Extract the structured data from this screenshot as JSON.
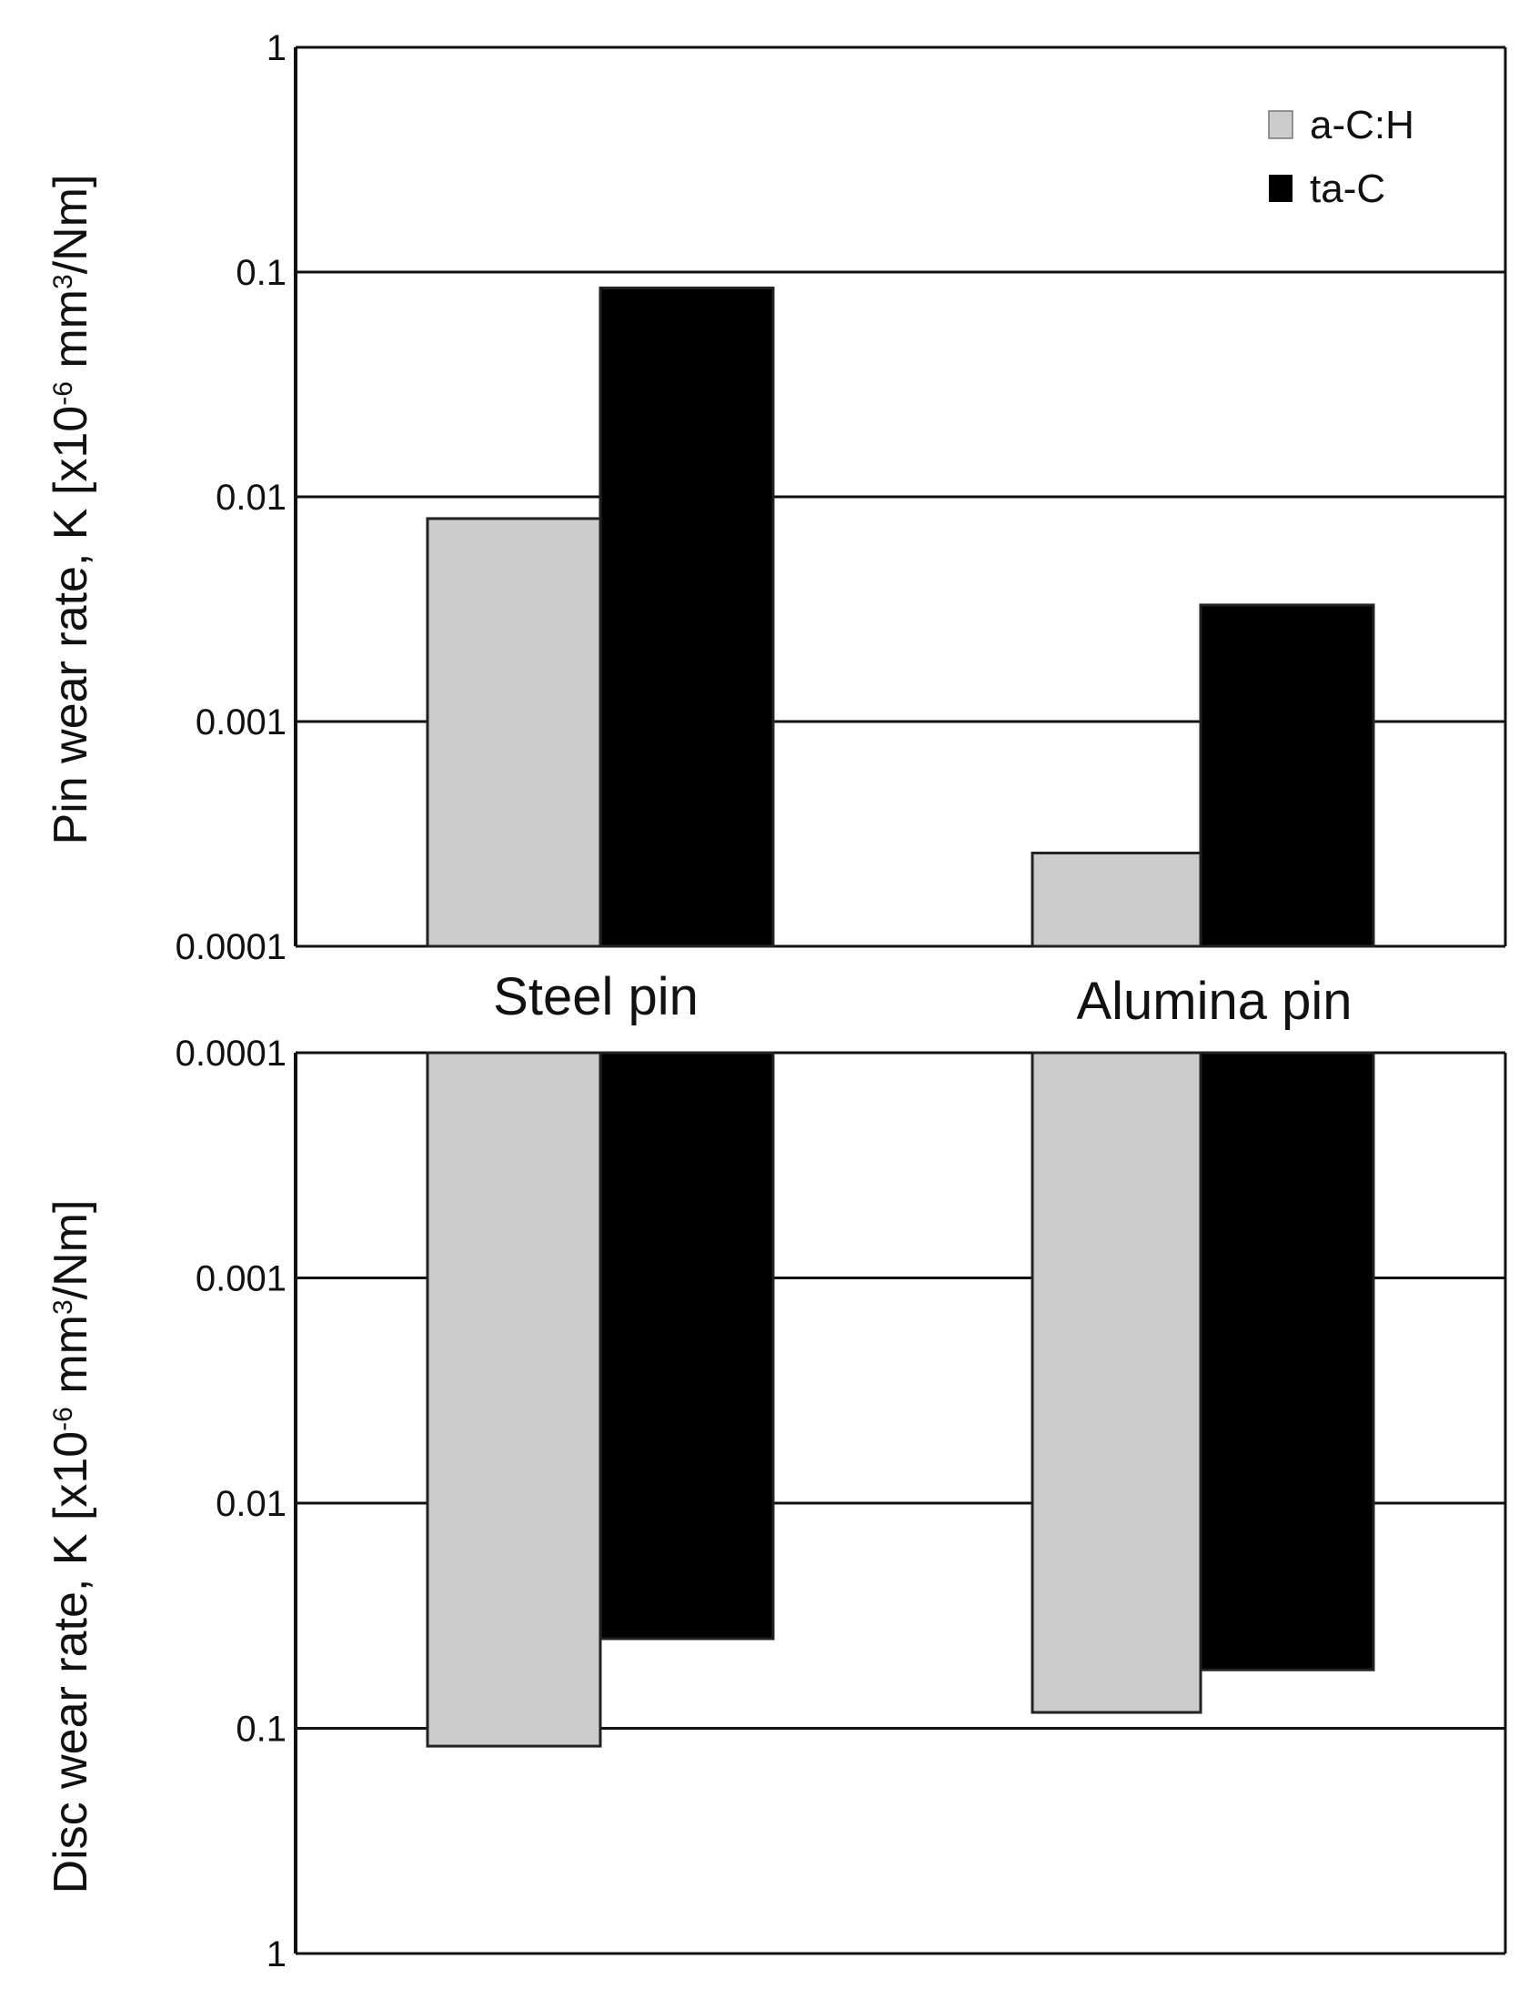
{
  "chart_data": [
    {
      "type": "bar",
      "yscale": "log",
      "ylim": [
        0.0001,
        1
      ],
      "yticks": [
        "1",
        "0.1",
        "0.01",
        "0.001",
        "0.0001"
      ],
      "ylabel": "Pin wear rate, K [x10",
      "ylabel_exp": "-6",
      "ylabel_mid": " mm",
      "ylabel_sup": "3",
      "ylabel_end": "/Nm]",
      "categories": [
        "Steel pin",
        "Alumina pin"
      ],
      "series": [
        {
          "name": "a-C:H",
          "values": [
            0.008,
            0.00026
          ]
        },
        {
          "name": "ta-C",
          "values": [
            0.085,
            0.0033
          ]
        }
      ],
      "colors": [
        "#cccccc",
        "#000000"
      ],
      "grid": true,
      "legend": "top-right"
    },
    {
      "type": "bar",
      "yscale": "log",
      "inverted": true,
      "ylim": [
        0.0001,
        1
      ],
      "yticks": [
        "0.0001",
        "0.001",
        "0.01",
        "0.1",
        "1"
      ],
      "ylabel": "Disc wear rate, K [x10",
      "ylabel_exp": "-6",
      "ylabel_mid": " mm",
      "ylabel_sup": "3",
      "ylabel_end": "/Nm]",
      "categories": [
        "Steel pin",
        "Alumina pin"
      ],
      "series": [
        {
          "name": "a-C:H",
          "values": [
            0.12,
            0.085
          ]
        },
        {
          "name": "ta-C",
          "values": [
            0.04,
            0.055
          ]
        }
      ],
      "colors": [
        "#cccccc",
        "#000000"
      ],
      "grid": true
    }
  ]
}
